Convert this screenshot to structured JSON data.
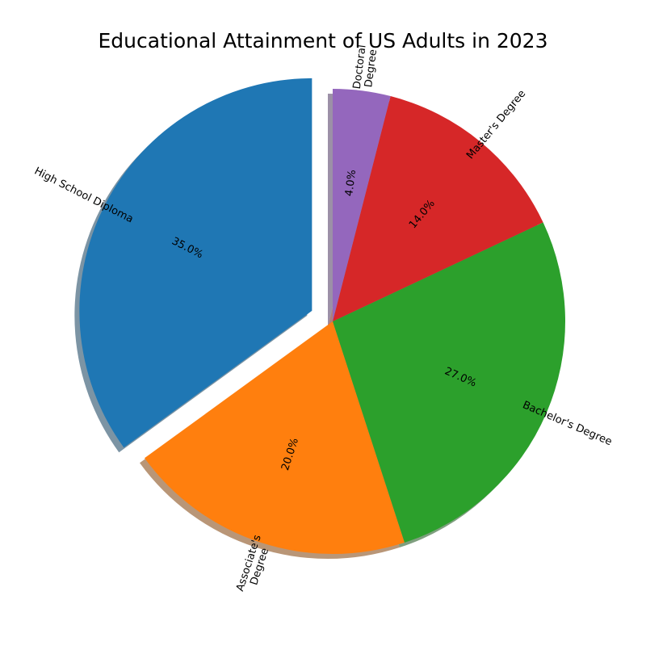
{
  "chart_data": {
    "type": "pie",
    "title": "Educational Attainment of US Adults in 2023",
    "label_lines": [
      [
        "High School Diploma"
      ],
      [
        "Associate's",
        "Degree"
      ],
      [
        "Bachelor's Degree"
      ],
      [
        "Master's Degree"
      ],
      [
        "Doctoral",
        "Degree"
      ]
    ],
    "categories": [
      "High School Diploma",
      "Associate's Degree",
      "Bachelor's Degree",
      "Master's Degree",
      "Doctoral Degree"
    ],
    "values": [
      35.0,
      20.0,
      27.0,
      14.0,
      4.0
    ],
    "value_labels": [
      "35.0%",
      "20.0%",
      "27.0%",
      "14.0%",
      "4.0%"
    ],
    "colors": [
      "#1f77b4",
      "#ff7f0e",
      "#2ca02c",
      "#d62728",
      "#9467bd"
    ],
    "exploded": [
      "High School Diploma"
    ],
    "shadow": true,
    "start_angle_deg": 90,
    "direction": "counterclockwise",
    "label_rotation": "radial"
  }
}
